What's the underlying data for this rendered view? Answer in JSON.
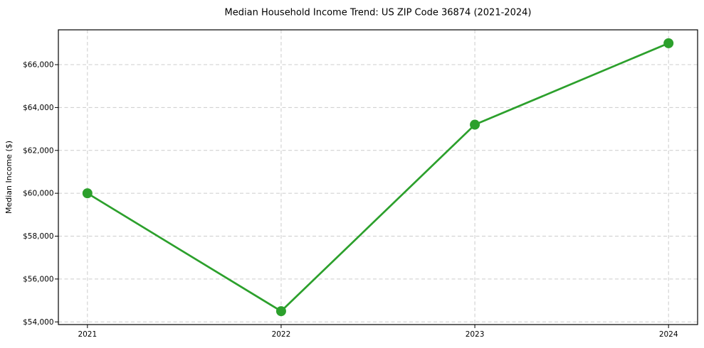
{
  "figure": {
    "background": "#ffffff"
  },
  "chart_data": {
    "type": "line",
    "title": "Median Household Income Trend: US ZIP Code 36874 (2021-2024)",
    "xlabel": "",
    "ylabel": "Median Income ($)",
    "x": [
      2021,
      2022,
      2023,
      2024
    ],
    "y": [
      60000,
      54500,
      63200,
      67000
    ],
    "xlim": [
      2020.85,
      2024.15
    ],
    "ylim": [
      53875,
      67625
    ],
    "xticks": {
      "values": [
        2021,
        2022,
        2023,
        2024
      ],
      "labels": [
        "2021",
        "2022",
        "2023",
        "2024"
      ]
    },
    "yticks": {
      "values": [
        54000,
        56000,
        58000,
        60000,
        62000,
        64000,
        66000
      ],
      "labels": [
        "$54,000",
        "$56,000",
        "$58,000",
        "$60,000",
        "$62,000",
        "$64,000",
        "$66,000"
      ]
    },
    "line_color": "#2ca02c",
    "marker": "circle",
    "grid": {
      "visible": true,
      "style": "dashed",
      "color": "#cccccc"
    },
    "legend": {
      "visible": false
    },
    "spine_color": "#000000",
    "text_color": "#000000"
  }
}
